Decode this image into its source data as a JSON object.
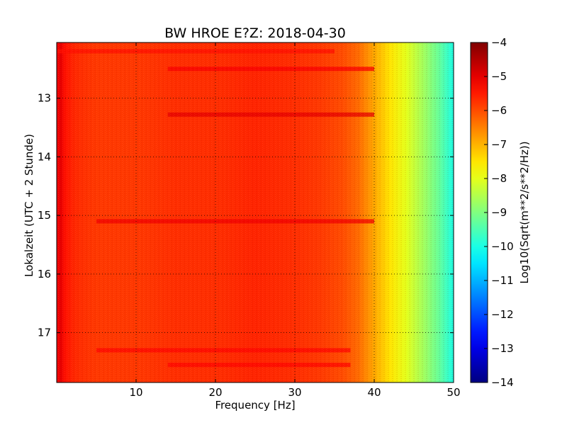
{
  "chart_data": {
    "type": "heatmap",
    "title": "BW HROE E?Z: 2018-04-30",
    "xlabel": "Frequency [Hz]",
    "ylabel": "Lokalzeit (UTC + 2 Stunde)",
    "xlim": [
      0,
      50
    ],
    "ylim": [
      12.05,
      17.85
    ],
    "y_inverted": true,
    "x_ticks": [
      10,
      20,
      30,
      40,
      50
    ],
    "y_ticks": [
      13,
      14,
      15,
      16,
      17
    ],
    "grid": true,
    "colorbar": {
      "label": "Log10(Sqrt(m**2/s**2/Hz))",
      "range": [
        -14,
        -4
      ],
      "ticks": [
        -4,
        -5,
        -6,
        -7,
        -8,
        -9,
        -10,
        -11,
        -12,
        -13,
        -14
      ],
      "colormap": "jet"
    },
    "frequency_profile": {
      "frequency_hz": [
        0,
        0.5,
        1,
        2,
        3,
        5,
        8,
        10,
        15,
        20,
        25,
        30,
        33,
        36,
        38,
        40,
        42,
        44,
        46,
        48,
        50
      ],
      "value": [
        -5.2,
        -5.0,
        -5.4,
        -5.6,
        -5.7,
        -5.8,
        -5.8,
        -5.8,
        -5.7,
        -5.7,
        -5.6,
        -5.7,
        -5.8,
        -6.0,
        -6.3,
        -6.9,
        -7.5,
        -8.0,
        -8.6,
        -9.2,
        -10.0
      ]
    },
    "bright_bands": [
      {
        "time": 12.5,
        "f_from": 14,
        "f_to": 40,
        "value": -5.2
      },
      {
        "time": 13.28,
        "f_from": 14,
        "f_to": 40,
        "value": -5.0
      },
      {
        "time": 15.1,
        "f_from": 5,
        "f_to": 40,
        "value": -5.1
      },
      {
        "time": 17.3,
        "f_from": 5,
        "f_to": 37,
        "value": -5.3
      },
      {
        "time": 17.55,
        "f_from": 14,
        "f_to": 37,
        "value": -5.3
      },
      {
        "time": 12.2,
        "f_from": 0,
        "f_to": 35,
        "value": -5.4
      }
    ]
  },
  "colors": {
    "axes": "#000000",
    "grid": "#000000",
    "background": "#ffffff"
  }
}
